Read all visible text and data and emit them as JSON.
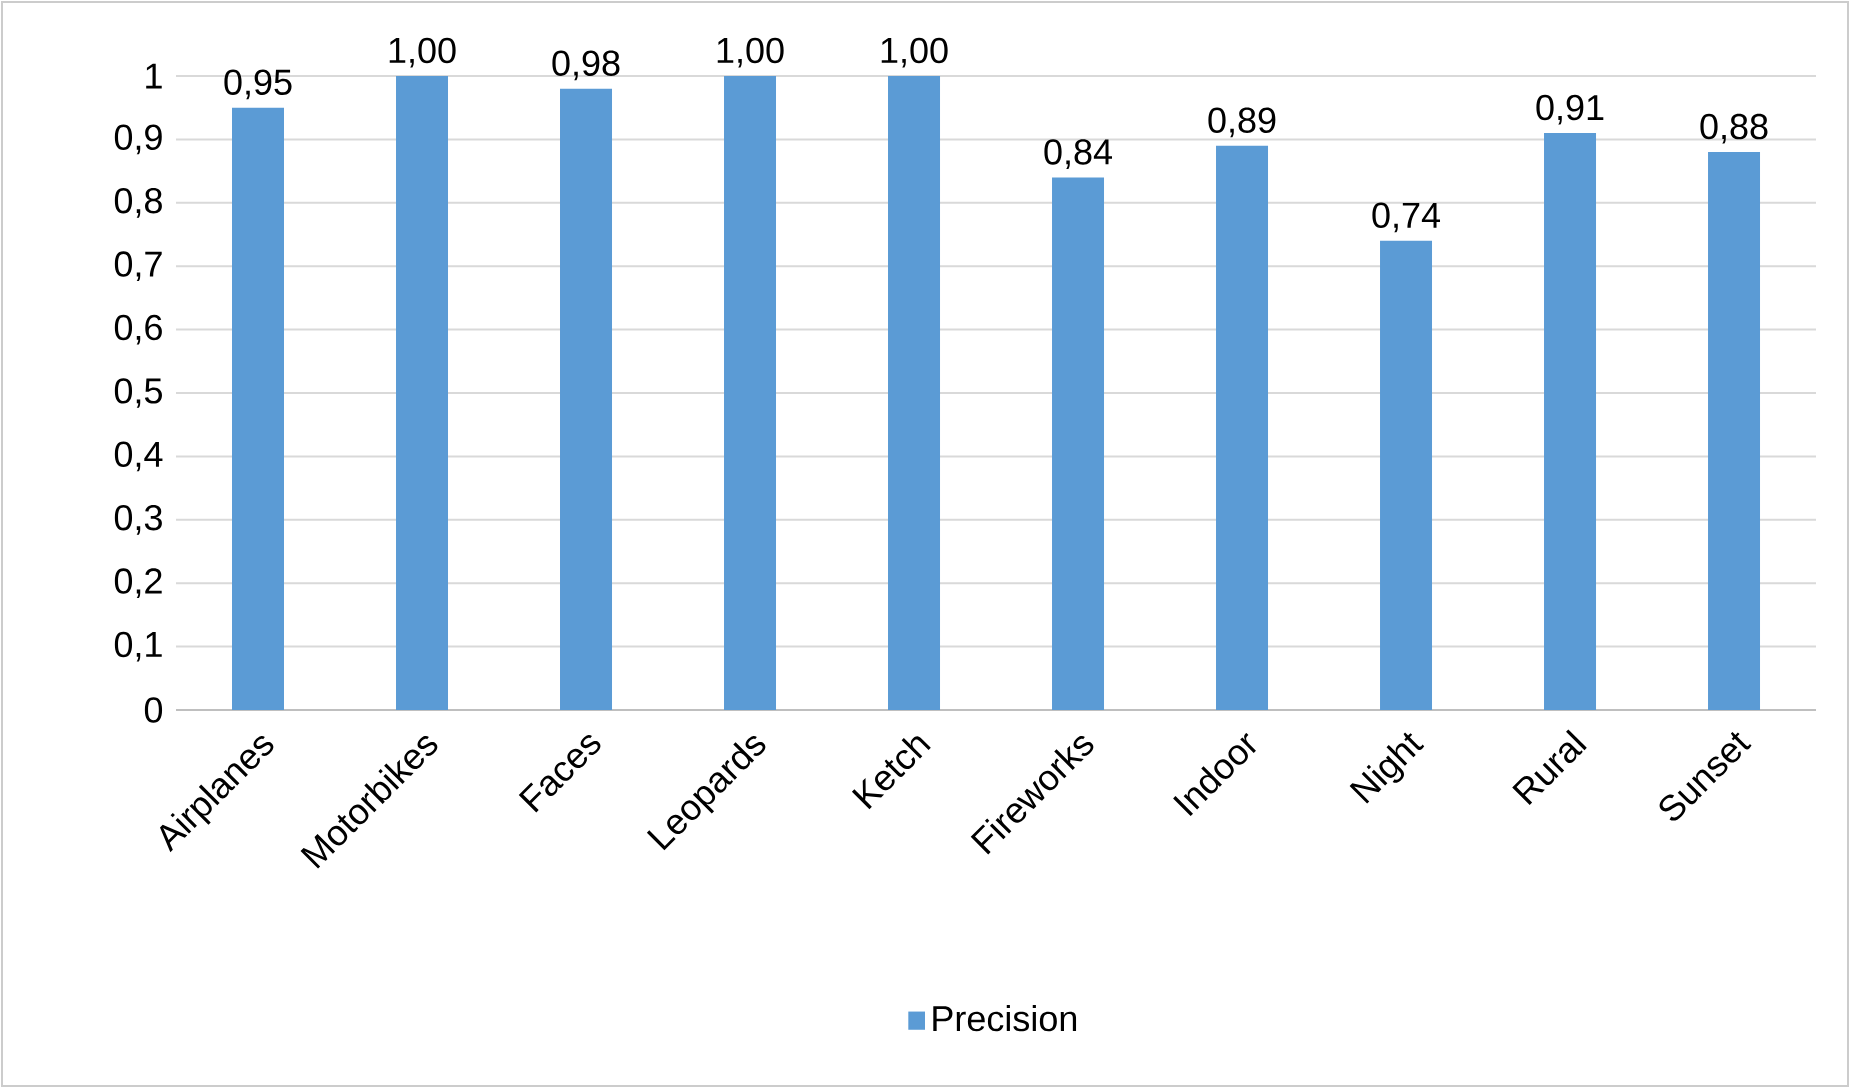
{
  "chart_data": {
    "type": "bar",
    "categories": [
      "Airplanes",
      "Motorbikes",
      "Faces",
      "Leopards",
      "Ketch",
      "Fireworks",
      "Indoor",
      "Night",
      "Rural",
      "Sunset"
    ],
    "series": [
      {
        "name": "Precision",
        "color": "#5b9bd5",
        "values": [
          0.95,
          1.0,
          0.98,
          1.0,
          1.0,
          0.84,
          0.89,
          0.74,
          0.91,
          0.88
        ]
      }
    ],
    "value_labels": [
      "0,95",
      "1,00",
      "0,98",
      "1,00",
      "1,00",
      "0,84",
      "0,89",
      "0,74",
      "0,91",
      "0,88"
    ],
    "ylim": [
      0,
      1
    ],
    "yticks": [
      0,
      {
        "value": 0.1,
        "label": "0,1"
      },
      {
        "value": 0.2,
        "label": "0,2"
      },
      {
        "value": 0.3,
        "label": "0,3"
      },
      {
        "value": 0.4,
        "label": "0,4"
      },
      {
        "value": 0.5,
        "label": "0,5"
      },
      {
        "value": 0.6,
        "label": "0,6"
      },
      {
        "value": 0.7,
        "label": "0,7"
      },
      {
        "value": 0.8,
        "label": "0,8"
      },
      {
        "value": 0.9,
        "label": "0,9"
      },
      1
    ],
    "grid": "y",
    "legend": "bottom"
  }
}
